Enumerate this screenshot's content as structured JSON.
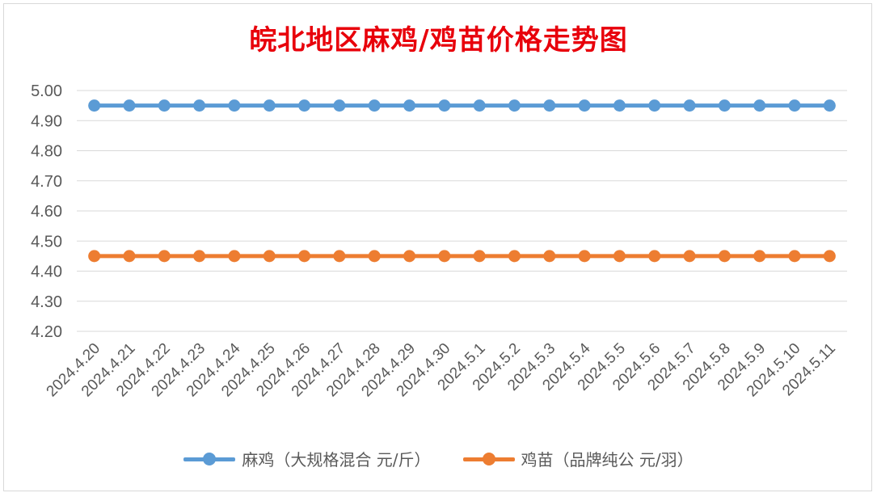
{
  "chart_data": {
    "type": "line",
    "title": "皖北地区麻鸡/鸡苗价格走势图",
    "categories": [
      "2024.4.20",
      "2024.4.21",
      "2024.4.22",
      "2024.4.23",
      "2024.4.24",
      "2024.4.25",
      "2024.4.26",
      "2024.4.27",
      "2024.4.28",
      "2024.4.29",
      "2024.4.30",
      "2024.5.1",
      "2024.5.2",
      "2024.5.3",
      "2024.5.4",
      "2024.5.5",
      "2024.5.6",
      "2024.5.7",
      "2024.5.8",
      "2024.5.9",
      "2024.5.10",
      "2024.5.11"
    ],
    "series": [
      {
        "name": "麻鸡（大规格混合 元/斤）",
        "color": "#5b9bd5",
        "values": [
          4.95,
          4.95,
          4.95,
          4.95,
          4.95,
          4.95,
          4.95,
          4.95,
          4.95,
          4.95,
          4.95,
          4.95,
          4.95,
          4.95,
          4.95,
          4.95,
          4.95,
          4.95,
          4.95,
          4.95,
          4.95,
          4.95
        ]
      },
      {
        "name": "鸡苗（品牌纯公 元/羽）",
        "color": "#ed7d31",
        "values": [
          4.45,
          4.45,
          4.45,
          4.45,
          4.45,
          4.45,
          4.45,
          4.45,
          4.45,
          4.45,
          4.45,
          4.45,
          4.45,
          4.45,
          4.45,
          4.45,
          4.45,
          4.45,
          4.45,
          4.45,
          4.45,
          4.45
        ]
      }
    ],
    "yticks": [
      "4.20",
      "4.30",
      "4.40",
      "4.50",
      "4.60",
      "4.70",
      "4.80",
      "4.90",
      "5.00"
    ],
    "ylim": [
      4.2,
      5.0
    ],
    "grid": true,
    "legend": "bottom",
    "xlabel": "",
    "ylabel": ""
  }
}
